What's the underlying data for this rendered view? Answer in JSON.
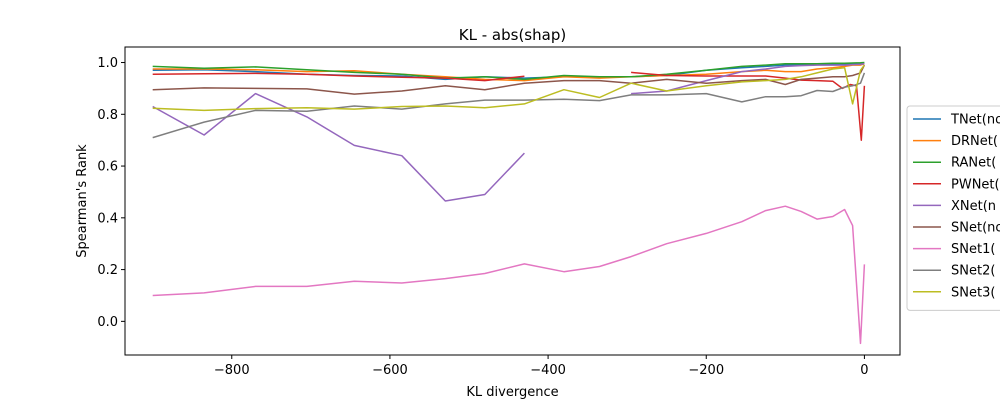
{
  "chart_data": {
    "type": "line",
    "title": "KL - abs(shap)",
    "xlabel": "KL divergence",
    "ylabel": "Spearman's Rank",
    "xlim": [
      -935,
      45
    ],
    "ylim": [
      -0.13,
      1.06
    ],
    "xticks": [
      -800,
      -600,
      -400,
      -200,
      0
    ],
    "xtick_labels": [
      "−800",
      "−600",
      "−400",
      "−200",
      "0"
    ],
    "yticks": [
      0.0,
      0.2,
      0.4,
      0.6,
      0.8,
      1.0
    ],
    "ytick_labels": [
      "0.0",
      "0.2",
      "0.4",
      "0.6",
      "0.8",
      "1.0"
    ],
    "grid": false,
    "legend_position": "right-outside",
    "series": [
      {
        "name": "TNet(no",
        "color": "#1f77b4",
        "points": [
          [
            -900,
            0.97
          ],
          [
            -835,
            0.972
          ],
          [
            -770,
            0.965
          ],
          [
            -705,
            0.955
          ],
          [
            -645,
            0.95
          ],
          [
            -585,
            0.948
          ],
          [
            -530,
            0.935
          ],
          [
            -480,
            0.945
          ],
          [
            -430,
            0.94
          ],
          [
            -380,
            0.945
          ],
          [
            -335,
            0.945
          ],
          [
            -295,
            0.945
          ],
          [
            -250,
            0.95
          ],
          [
            -200,
            0.97
          ],
          [
            -155,
            0.98
          ],
          [
            -125,
            0.985
          ],
          [
            -100,
            0.99
          ],
          [
            -80,
            0.99
          ],
          [
            -60,
            0.992
          ],
          [
            -40,
            0.993
          ],
          [
            -25,
            0.993
          ],
          [
            -15,
            0.994
          ],
          [
            -5,
            0.995
          ],
          [
            0,
            0.996
          ]
        ]
      },
      {
        "name": "DRNet(",
        "color": "#ff7f0e",
        "points": [
          [
            -900,
            0.975
          ],
          [
            -835,
            0.975
          ],
          [
            -770,
            0.972
          ],
          [
            -705,
            0.965
          ],
          [
            -645,
            0.968
          ],
          [
            -585,
            0.955
          ],
          [
            -530,
            0.945
          ],
          [
            -480,
            0.935
          ],
          [
            -430,
            0.93
          ],
          [
            -380,
            0.945
          ],
          [
            -335,
            0.94
          ],
          [
            -295,
            0.945
          ],
          [
            -250,
            0.95
          ],
          [
            -200,
            0.955
          ],
          [
            -155,
            0.965
          ],
          [
            -125,
            0.97
          ],
          [
            -100,
            0.965
          ],
          [
            -80,
            0.965
          ],
          [
            -60,
            0.975
          ],
          [
            -40,
            0.98
          ],
          [
            -25,
            0.985
          ],
          [
            -15,
            0.99
          ],
          [
            -5,
            0.99
          ],
          [
            0,
            0.995
          ]
        ]
      },
      {
        "name": "RANet(",
        "color": "#2ca02c",
        "points": [
          [
            -900,
            0.985
          ],
          [
            -835,
            0.978
          ],
          [
            -770,
            0.983
          ],
          [
            -705,
            0.972
          ],
          [
            -645,
            0.962
          ],
          [
            -585,
            0.955
          ],
          [
            -530,
            0.94
          ],
          [
            -480,
            0.945
          ],
          [
            -430,
            0.935
          ],
          [
            -380,
            0.95
          ],
          [
            -335,
            0.945
          ],
          [
            -295,
            0.945
          ],
          [
            -250,
            0.955
          ],
          [
            -200,
            0.97
          ],
          [
            -155,
            0.985
          ],
          [
            -125,
            0.99
          ],
          [
            -100,
            0.995
          ],
          [
            -80,
            0.995
          ],
          [
            -60,
            0.995
          ],
          [
            -40,
            0.997
          ],
          [
            -25,
            0.997
          ],
          [
            -15,
            0.998
          ],
          [
            -5,
            0.999
          ],
          [
            0,
            1.0
          ]
        ]
      },
      {
        "name": "PWNet(",
        "color": "#d62728",
        "segments": [
          [
            [
              -900,
              0.955
            ],
            [
              -835,
              0.957
            ],
            [
              -770,
              0.958
            ],
            [
              -705,
              0.955
            ],
            [
              -645,
              0.948
            ],
            [
              -585,
              0.943
            ],
            [
              -530,
              0.94
            ],
            [
              -480,
              0.93
            ],
            [
              -430,
              0.947
            ]
          ],
          [
            [
              -295,
              0.962
            ],
            [
              -250,
              0.95
            ],
            [
              -200,
              0.948
            ],
            [
              -155,
              0.948
            ],
            [
              -125,
              0.948
            ],
            [
              -100,
              0.94
            ],
            [
              -80,
              0.932
            ],
            [
              -60,
              0.93
            ],
            [
              -40,
              0.928
            ],
            [
              -28,
              0.9
            ],
            [
              -18,
              0.915
            ],
            [
              -10,
              0.91
            ],
            [
              -4,
              0.7
            ],
            [
              0,
              0.91
            ]
          ]
        ]
      },
      {
        "name": "XNet(n",
        "color": "#9467bd",
        "segments": [
          [
            [
              -900,
              0.83
            ],
            [
              -835,
              0.72
            ],
            [
              -770,
              0.88
            ],
            [
              -705,
              0.79
            ],
            [
              -645,
              0.68
            ],
            [
              -585,
              0.64
            ],
            [
              -530,
              0.465
            ],
            [
              -480,
              0.49
            ],
            [
              -430,
              0.65
            ]
          ],
          [
            [
              -295,
              0.88
            ],
            [
              -250,
              0.89
            ],
            [
              -200,
              0.93
            ],
            [
              -155,
              0.965
            ],
            [
              -125,
              0.975
            ],
            [
              -100,
              0.985
            ],
            [
              -80,
              0.988
            ],
            [
              -60,
              0.99
            ],
            [
              -40,
              0.99
            ],
            [
              -25,
              0.99
            ],
            [
              -15,
              0.992
            ],
            [
              -5,
              0.993
            ],
            [
              0,
              0.995
            ]
          ]
        ]
      },
      {
        "name": "SNet(no",
        "color": "#8c564b",
        "points": [
          [
            -900,
            0.895
          ],
          [
            -835,
            0.902
          ],
          [
            -770,
            0.9
          ],
          [
            -705,
            0.898
          ],
          [
            -645,
            0.878
          ],
          [
            -585,
            0.89
          ],
          [
            -530,
            0.91
          ],
          [
            -480,
            0.895
          ],
          [
            -430,
            0.92
          ],
          [
            -380,
            0.93
          ],
          [
            -335,
            0.93
          ],
          [
            -295,
            0.92
          ],
          [
            -250,
            0.935
          ],
          [
            -200,
            0.92
          ],
          [
            -155,
            0.93
          ],
          [
            -125,
            0.935
          ],
          [
            -100,
            0.915
          ],
          [
            -80,
            0.935
          ],
          [
            -60,
            0.94
          ],
          [
            -40,
            0.945
          ],
          [
            -25,
            0.945
          ],
          [
            -15,
            0.95
          ],
          [
            -5,
            0.96
          ],
          [
            0,
            0.99
          ]
        ]
      },
      {
        "name": "SNet1(",
        "color": "#e377c2",
        "points": [
          [
            -900,
            0.1
          ],
          [
            -835,
            0.11
          ],
          [
            -770,
            0.135
          ],
          [
            -705,
            0.135
          ],
          [
            -645,
            0.155
          ],
          [
            -585,
            0.148
          ],
          [
            -530,
            0.165
          ],
          [
            -480,
            0.185
          ],
          [
            -430,
            0.222
          ],
          [
            -380,
            0.192
          ],
          [
            -335,
            0.212
          ],
          [
            -295,
            0.25
          ],
          [
            -250,
            0.3
          ],
          [
            -200,
            0.34
          ],
          [
            -155,
            0.385
          ],
          [
            -125,
            0.428
          ],
          [
            -100,
            0.445
          ],
          [
            -80,
            0.425
          ],
          [
            -60,
            0.395
          ],
          [
            -40,
            0.405
          ],
          [
            -25,
            0.432
          ],
          [
            -15,
            0.37
          ],
          [
            -5,
            -0.085
          ],
          [
            0,
            0.22
          ]
        ]
      },
      {
        "name": "SNet2(",
        "color": "#7f7f7f",
        "points": [
          [
            -900,
            0.71
          ],
          [
            -835,
            0.77
          ],
          [
            -770,
            0.815
          ],
          [
            -705,
            0.812
          ],
          [
            -645,
            0.832
          ],
          [
            -585,
            0.82
          ],
          [
            -530,
            0.84
          ],
          [
            -480,
            0.855
          ],
          [
            -430,
            0.855
          ],
          [
            -380,
            0.858
          ],
          [
            -335,
            0.853
          ],
          [
            -295,
            0.875
          ],
          [
            -250,
            0.875
          ],
          [
            -200,
            0.88
          ],
          [
            -155,
            0.848
          ],
          [
            -125,
            0.868
          ],
          [
            -100,
            0.868
          ],
          [
            -80,
            0.872
          ],
          [
            -60,
            0.892
          ],
          [
            -40,
            0.888
          ],
          [
            -25,
            0.905
          ],
          [
            -15,
            0.91
          ],
          [
            -5,
            0.92
          ],
          [
            0,
            0.96
          ]
        ]
      },
      {
        "name": "SNet3(",
        "color": "#bcbd22",
        "points": [
          [
            -900,
            0.823
          ],
          [
            -835,
            0.815
          ],
          [
            -770,
            0.822
          ],
          [
            -705,
            0.825
          ],
          [
            -645,
            0.82
          ],
          [
            -585,
            0.83
          ],
          [
            -530,
            0.832
          ],
          [
            -480,
            0.825
          ],
          [
            -430,
            0.84
          ],
          [
            -380,
            0.895
          ],
          [
            -335,
            0.865
          ],
          [
            -295,
            0.92
          ],
          [
            -250,
            0.89
          ],
          [
            -200,
            0.91
          ],
          [
            -155,
            0.925
          ],
          [
            -125,
            0.93
          ],
          [
            -100,
            0.935
          ],
          [
            -80,
            0.945
          ],
          [
            -60,
            0.96
          ],
          [
            -40,
            0.975
          ],
          [
            -25,
            0.98
          ],
          [
            -15,
            0.84
          ],
          [
            -5,
            0.97
          ],
          [
            0,
            0.99
          ]
        ]
      }
    ]
  }
}
